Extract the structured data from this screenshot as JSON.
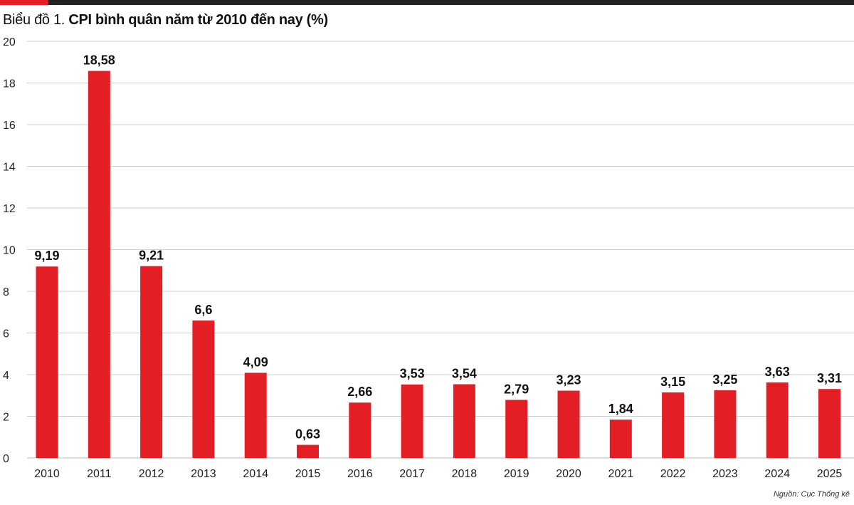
{
  "header": {
    "title_prefix": "Biểu đồ 1. ",
    "title_main": "CPI bình quân năm từ 2010 đến nay (%)"
  },
  "source": "Nguồn: Cục Thống kê",
  "colors": {
    "bar": "#e31e24",
    "grid": "#cfcfcf",
    "accent": "#e31e24",
    "topbar": "#222222"
  },
  "chart_data": {
    "type": "bar",
    "title": "Biểu đồ 1. CPI bình quân năm từ 2010 đến nay (%)",
    "categories": [
      "2010",
      "2011",
      "2012",
      "2013",
      "2014",
      "2015",
      "2016",
      "2017",
      "2018",
      "2019",
      "2020",
      "2021",
      "2022",
      "2023",
      "2024",
      "2025"
    ],
    "values": [
      9.19,
      18.58,
      9.21,
      6.6,
      4.09,
      0.63,
      2.66,
      3.53,
      3.54,
      2.79,
      3.23,
      1.84,
      3.15,
      3.25,
      3.63,
      3.31
    ],
    "value_labels": [
      "9,19",
      "18,58",
      "9,21",
      "6,6",
      "4,09",
      "0,63",
      "2,66",
      "3,53",
      "3,54",
      "2,79",
      "3,23",
      "1,84",
      "3,15",
      "3,25",
      "3,63",
      "3,31"
    ],
    "yticks": [
      0,
      2,
      4,
      6,
      8,
      10,
      12,
      14,
      16,
      18,
      20
    ],
    "ylim": [
      0,
      20
    ],
    "xlabel": "",
    "ylabel": "",
    "grid": true
  }
}
